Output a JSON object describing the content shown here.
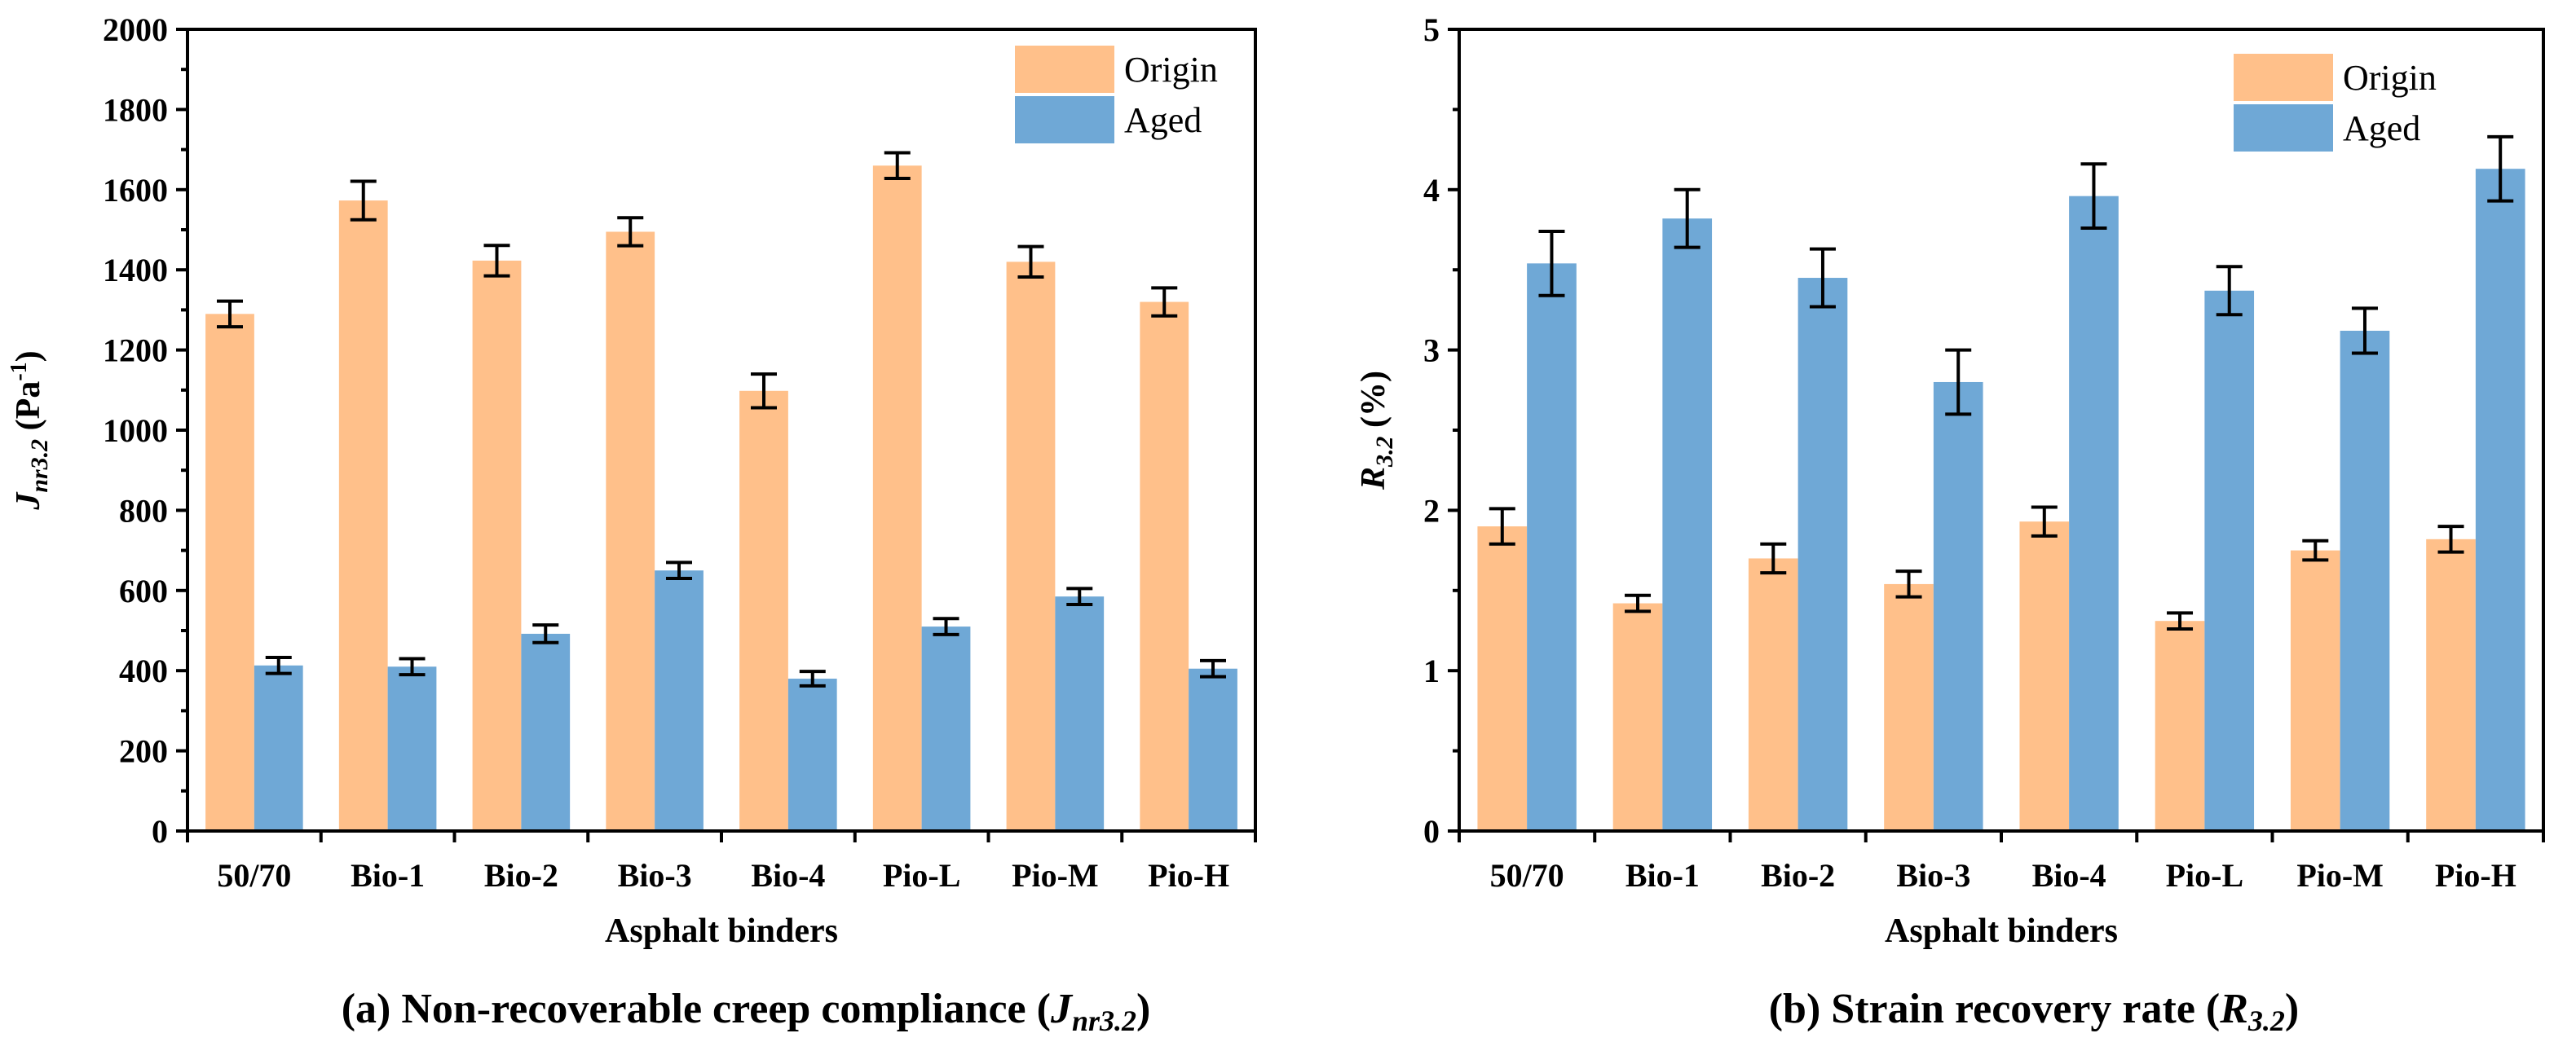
{
  "chart_data": [
    {
      "type": "bar",
      "title": "",
      "caption": "(a) Non-recoverable creep compliance (J",
      "caption_sub": "nr3.2",
      "caption_end": ")",
      "xlabel": "Asphalt binders",
      "ylabel_main": "J",
      "ylabel_sub": "nr3.2",
      "ylabel_unit": " (Pa",
      "ylabel_sup": "-1",
      "ylabel_end": ")",
      "categories": [
        "50/70",
        "Bio-1",
        "Bio-2",
        "Bio-3",
        "Bio-4",
        "Pio-L",
        "Pio-M",
        "Pio-H"
      ],
      "ylim": [
        0,
        2000
      ],
      "yticks": [
        0,
        200,
        400,
        600,
        800,
        1000,
        1200,
        1400,
        1600,
        1800,
        2000
      ],
      "legend_position": "top-right",
      "series": [
        {
          "name": "Origin",
          "color": "#FFC08A",
          "values": [
            1290,
            1573,
            1423,
            1495,
            1098,
            1660,
            1420,
            1320
          ],
          "errors": [
            32,
            48,
            38,
            35,
            42,
            32,
            38,
            35
          ]
        },
        {
          "name": "Aged",
          "color": "#6FA8D6",
          "values": [
            413,
            410,
            492,
            650,
            380,
            510,
            585,
            405
          ],
          "errors": [
            20,
            20,
            22,
            20,
            18,
            20,
            20,
            20
          ]
        }
      ]
    },
    {
      "type": "bar",
      "title": "",
      "caption": "(b) Strain recovery rate (R",
      "caption_sub": "3.2",
      "caption_end": ")",
      "xlabel": "Asphalt binders",
      "ylabel_main": "R",
      "ylabel_sub": "3.2",
      "ylabel_unit": " (%)",
      "ylabel_sup": "",
      "ylabel_end": "",
      "categories": [
        "50/70",
        "Bio-1",
        "Bio-2",
        "Bio-3",
        "Bio-4",
        "Pio-L",
        "Pio-M",
        "Pio-H"
      ],
      "ylim": [
        0,
        5
      ],
      "yticks": [
        0,
        1,
        2,
        3,
        4,
        5
      ],
      "legend_position": "top-left",
      "series": [
        {
          "name": "Origin",
          "color": "#FFC08A",
          "values": [
            1.9,
            1.42,
            1.7,
            1.54,
            1.93,
            1.31,
            1.75,
            1.82
          ],
          "errors": [
            0.11,
            0.05,
            0.09,
            0.08,
            0.09,
            0.05,
            0.06,
            0.08
          ]
        },
        {
          "name": "Aged",
          "color": "#6FA8D6",
          "values": [
            3.54,
            3.82,
            3.45,
            2.8,
            3.96,
            3.37,
            3.12,
            4.13
          ],
          "errors": [
            0.2,
            0.18,
            0.18,
            0.2,
            0.2,
            0.15,
            0.14,
            0.2
          ]
        }
      ]
    }
  ]
}
